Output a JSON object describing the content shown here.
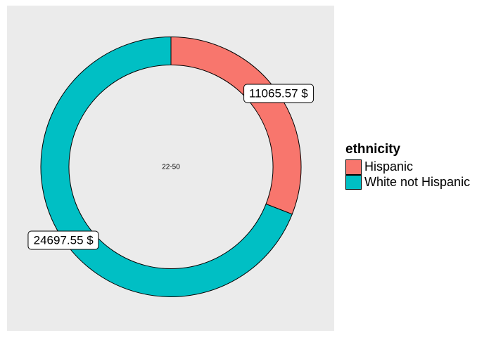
{
  "chart_data": {
    "type": "pie",
    "subtype": "donut",
    "legend_title": "ethnicity",
    "legend_position": "right",
    "center_label": "22-50",
    "panel_background": "#EBEBEB",
    "outline_color": "#000000",
    "label_box_fill": "#FFFFFF",
    "label_box_border": "#000000",
    "start_angle_deg": 0,
    "direction": "clockwise",
    "inner_radius_ratio": 0.784,
    "series": [
      {
        "name": "Hispanic",
        "value": 11065.57,
        "label": "11065.57 $",
        "color": "#F8766D"
      },
      {
        "name": "White not Hispanic",
        "value": 24697.55,
        "label": "24697.55 $",
        "color": "#00BFC4"
      }
    ]
  }
}
